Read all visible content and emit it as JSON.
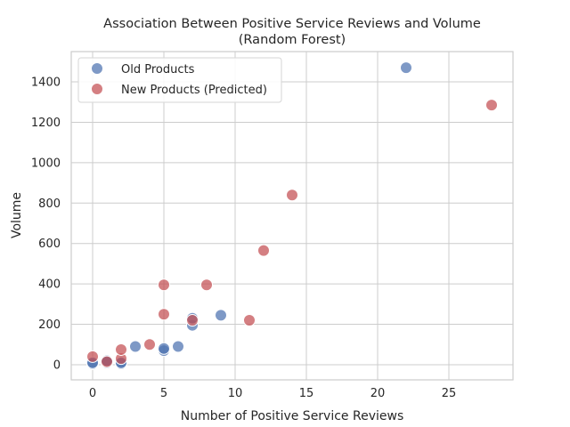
{
  "chart_data": {
    "type": "scatter",
    "title": "Association Between Positive Service Reviews and Volume",
    "subtitle": "(Random Forest)",
    "xlabel": "Number of Positive Service Reviews",
    "ylabel": "Volume",
    "xlim": [
      -1.5,
      29.5
    ],
    "ylim": [
      -75,
      1550
    ],
    "xticks": [
      0,
      5,
      10,
      15,
      20,
      25
    ],
    "yticks": [
      0,
      200,
      400,
      600,
      800,
      1000,
      1200,
      1400
    ],
    "grid": true,
    "legend_position": "top-left",
    "series": [
      {
        "name": "Old Products",
        "color": "#4c72b0",
        "points": [
          {
            "x": 0,
            "y": 5
          },
          {
            "x": 0,
            "y": 10
          },
          {
            "x": 1,
            "y": 10
          },
          {
            "x": 1,
            "y": 20
          },
          {
            "x": 2,
            "y": 5
          },
          {
            "x": 2,
            "y": 10
          },
          {
            "x": 3,
            "y": 90
          },
          {
            "x": 5,
            "y": 70
          },
          {
            "x": 5,
            "y": 80
          },
          {
            "x": 6,
            "y": 90
          },
          {
            "x": 7,
            "y": 195
          },
          {
            "x": 7,
            "y": 230
          },
          {
            "x": 9,
            "y": 245
          },
          {
            "x": 22,
            "y": 1470
          }
        ]
      },
      {
        "name": "New Products (Predicted)",
        "color": "#c44e52",
        "points": [
          {
            "x": 0,
            "y": 40
          },
          {
            "x": 1,
            "y": 15
          },
          {
            "x": 2,
            "y": 30
          },
          {
            "x": 2,
            "y": 75
          },
          {
            "x": 4,
            "y": 100
          },
          {
            "x": 5,
            "y": 250
          },
          {
            "x": 5,
            "y": 395
          },
          {
            "x": 7,
            "y": 220
          },
          {
            "x": 8,
            "y": 395
          },
          {
            "x": 11,
            "y": 220
          },
          {
            "x": 12,
            "y": 565
          },
          {
            "x": 14,
            "y": 840
          },
          {
            "x": 28,
            "y": 1285
          }
        ]
      }
    ]
  }
}
